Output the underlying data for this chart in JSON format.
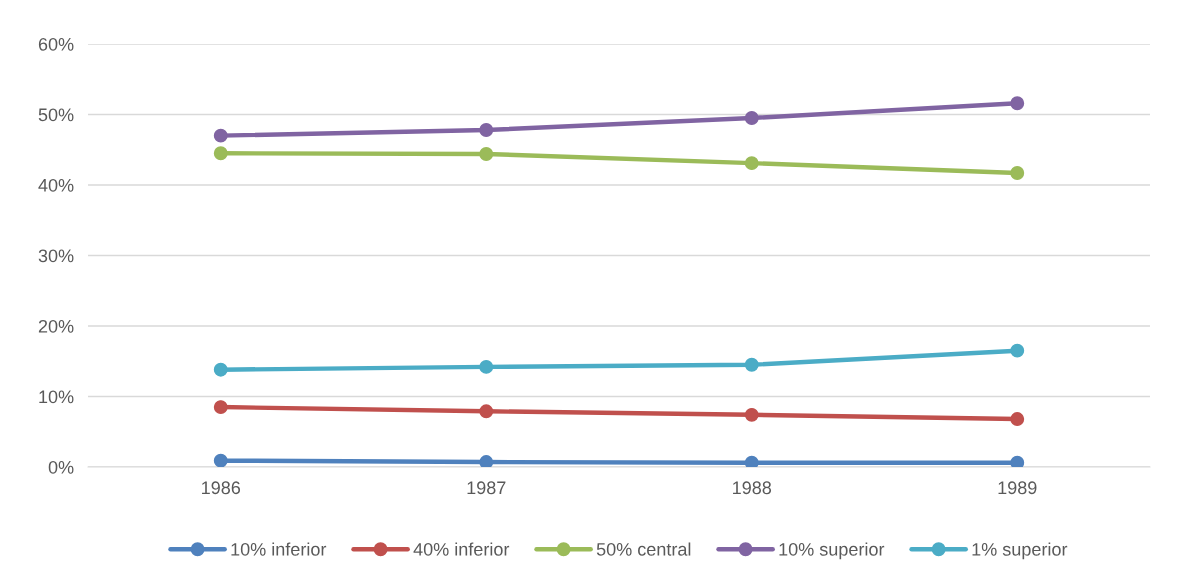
{
  "chart_data": {
    "type": "line",
    "categories": [
      "1986",
      "1987",
      "1988",
      "1989"
    ],
    "series": [
      {
        "name": "10% inferior",
        "color": "#4f81bd",
        "values": [
          0.9,
          0.7,
          0.6,
          0.6
        ]
      },
      {
        "name": "40% inferior",
        "color": "#c0504d",
        "values": [
          8.5,
          7.9,
          7.4,
          6.8
        ]
      },
      {
        "name": "50% central",
        "color": "#9bbb59",
        "values": [
          44.5,
          44.4,
          43.1,
          41.7
        ]
      },
      {
        "name": "10% superior",
        "color": "#8064a2",
        "values": [
          47.0,
          47.8,
          49.5,
          51.6
        ]
      },
      {
        "name": "1% superior",
        "color": "#4bacc6",
        "values": [
          13.8,
          14.2,
          14.5,
          16.5
        ]
      }
    ],
    "ylim": [
      0,
      60
    ],
    "yticks": [
      {
        "value": 0,
        "label": "0%"
      },
      {
        "value": 10,
        "label": "10%"
      },
      {
        "value": 20,
        "label": "20%"
      },
      {
        "value": 30,
        "label": "30%"
      },
      {
        "value": 40,
        "label": "40%"
      },
      {
        "value": 50,
        "label": "50%"
      },
      {
        "value": 60,
        "label": "60%"
      }
    ],
    "grid": "y",
    "legend": "bottom",
    "marker": "circle",
    "line_style": "solid"
  }
}
